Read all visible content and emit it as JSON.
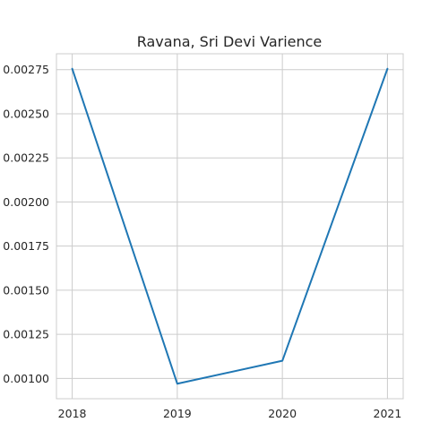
{
  "chart_data": {
    "type": "line",
    "title": "Ravana, Sri Devi Varience",
    "xlabel": "",
    "ylabel": "",
    "x": [
      2018,
      2019,
      2020,
      2021
    ],
    "x_tick_labels": [
      "2018",
      "2019",
      "2020",
      "2021"
    ],
    "series": [
      {
        "values": [
          0.002755,
          0.00097,
          0.0011,
          0.002755
        ],
        "color": "#1f77b4"
      }
    ],
    "xlim": [
      2017.85,
      2021.15
    ],
    "ylim": [
      0.000885,
      0.00284
    ],
    "y_ticks": [
      0.001,
      0.00125,
      0.0015,
      0.00175,
      0.002,
      0.00225,
      0.0025,
      0.00275
    ],
    "y_tick_labels": [
      "0.00100",
      "0.00125",
      "0.00150",
      "0.00175",
      "0.00200",
      "0.00225",
      "0.00250",
      "0.00275"
    ],
    "grid": true,
    "legend": "none"
  }
}
